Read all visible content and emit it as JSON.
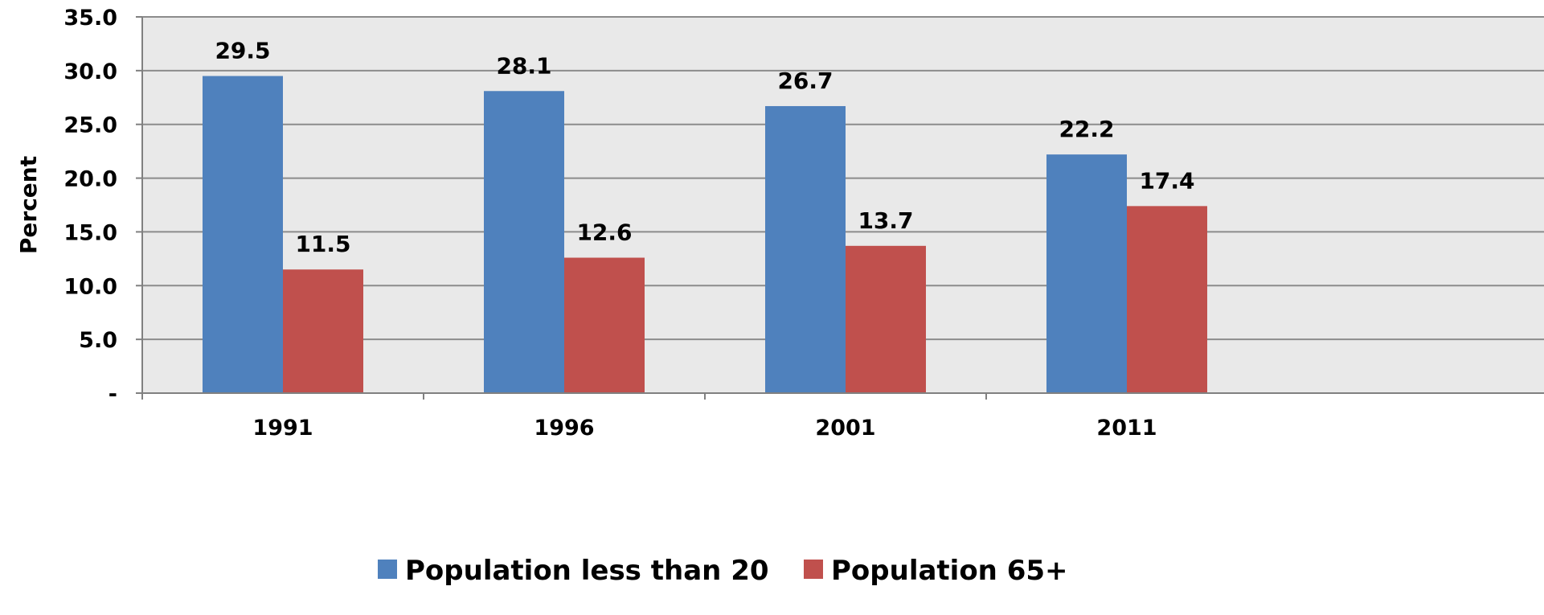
{
  "chart_data": {
    "type": "bar",
    "categories": [
      "1991",
      "1996",
      "2001",
      "2011"
    ],
    "series": [
      {
        "name": "Population less than 20",
        "values": [
          29.5,
          28.1,
          26.7,
          22.2
        ],
        "labels": [
          "29.5",
          "28.1",
          "26.7",
          "22.2"
        ],
        "color": "#4F81BD"
      },
      {
        "name": "Population 65+",
        "values": [
          11.5,
          12.6,
          13.7,
          17.4
        ],
        "labels": [
          "11.5",
          "12.6",
          "13.7",
          "17.4"
        ],
        "color": "#C0504D"
      }
    ],
    "ylabel": "Percent",
    "xlabel": "",
    "ylim": [
      0,
      35
    ],
    "yticks": [
      0,
      5,
      10,
      15,
      20,
      25,
      30,
      35
    ],
    "ytick_labels": [
      "-",
      "5.0",
      "10.0",
      "15.0",
      "20.0",
      "25.0",
      "30.0",
      "35.0"
    ],
    "grid": true,
    "legend": "bottom",
    "plot_background": "#E9E9E9"
  }
}
